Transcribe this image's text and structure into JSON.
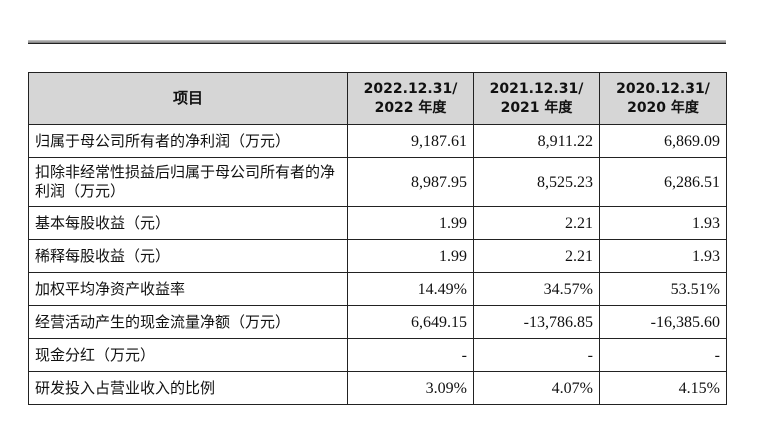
{
  "table": {
    "header": {
      "item": "项目",
      "cols": [
        {
          "line1": "2022.12.31/",
          "line2": "2022 年度"
        },
        {
          "line1": "2021.12.31/",
          "line2": "2021 年度"
        },
        {
          "line1": "2020.12.31/",
          "line2": "2020 年度"
        }
      ]
    },
    "rows": [
      {
        "label": "归属于母公司所有者的净利润（万元）",
        "values": [
          "9,187.61",
          "8,911.22",
          "6,869.09"
        ]
      },
      {
        "label": "扣除非经常性损益后归属于母公司所有者的净利润（万元）",
        "values": [
          "8,987.95",
          "8,525.23",
          "6,286.51"
        ]
      },
      {
        "label": "基本每股收益（元）",
        "values": [
          "1.99",
          "2.21",
          "1.93"
        ]
      },
      {
        "label": "稀释每股收益（元）",
        "values": [
          "1.99",
          "2.21",
          "1.93"
        ]
      },
      {
        "label": "加权平均净资产收益率",
        "values": [
          "14.49%",
          "34.57%",
          "53.51%"
        ]
      },
      {
        "label": "经营活动产生的现金流量净额（万元）",
        "values": [
          "6,649.15",
          "-13,786.85",
          "-16,385.60"
        ]
      },
      {
        "label": "现金分红（万元）",
        "values": [
          "-",
          "-",
          "-"
        ]
      },
      {
        "label": "研发投入占营业收入的比例",
        "values": [
          "3.09%",
          "4.07%",
          "4.15%"
        ]
      }
    ]
  }
}
